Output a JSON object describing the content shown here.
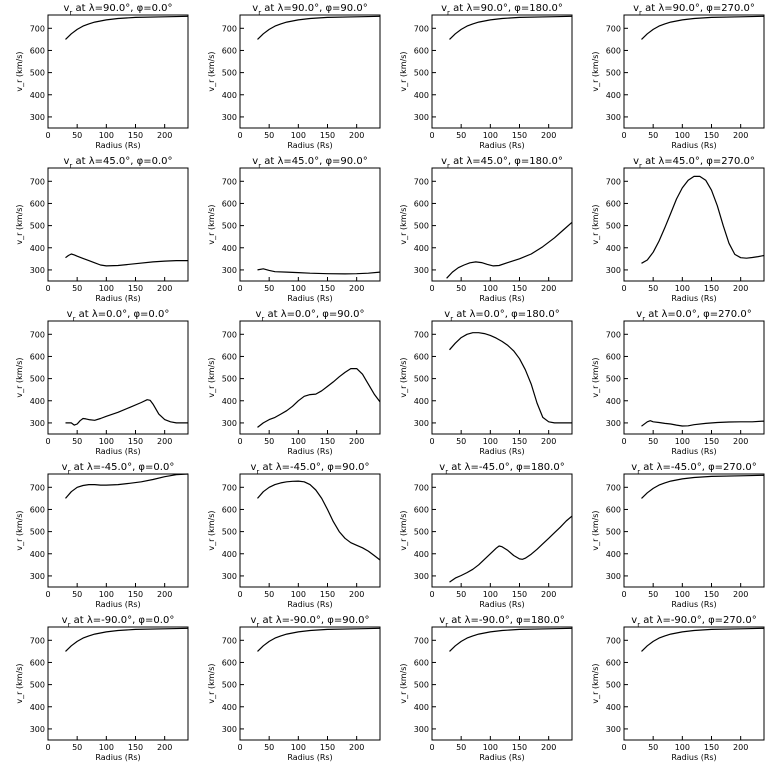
{
  "xlabel": "Radius (Rs)",
  "ylabel": "v_r (km/s)",
  "title_prefix": "v",
  "title_sub": "r",
  "title_at": " at ",
  "lambda_sym": "λ",
  "phi_sym": "φ",
  "deg": "°",
  "xlim": [
    0,
    240
  ],
  "ylim": [
    250,
    760
  ],
  "xticks": [
    0,
    50,
    100,
    150,
    200
  ],
  "yticks": [
    300,
    400,
    500,
    600,
    700
  ],
  "lambdas": [
    "90.0",
    "45.0",
    "0.0",
    "-45.0",
    "-90.0"
  ],
  "phis": [
    "0.0",
    "90.0",
    "180.0",
    "270.0"
  ],
  "chart_data": [
    {
      "type": "line",
      "lambda": "90.0",
      "phi": "0.0",
      "x": [
        30,
        40,
        50,
        60,
        70,
        80,
        100,
        120,
        150,
        200,
        240
      ],
      "y": [
        650,
        675,
        695,
        710,
        720,
        728,
        738,
        744,
        749,
        752,
        754
      ]
    },
    {
      "type": "line",
      "lambda": "90.0",
      "phi": "90.0",
      "x": [
        30,
        40,
        50,
        60,
        70,
        80,
        100,
        120,
        150,
        200,
        240
      ],
      "y": [
        650,
        675,
        695,
        710,
        720,
        728,
        738,
        744,
        749,
        752,
        754
      ]
    },
    {
      "type": "line",
      "lambda": "90.0",
      "phi": "180.0",
      "x": [
        30,
        40,
        50,
        60,
        70,
        80,
        100,
        120,
        150,
        200,
        240
      ],
      "y": [
        650,
        675,
        695,
        710,
        720,
        728,
        738,
        744,
        749,
        752,
        754
      ]
    },
    {
      "type": "line",
      "lambda": "90.0",
      "phi": "270.0",
      "x": [
        30,
        40,
        50,
        60,
        70,
        80,
        100,
        120,
        150,
        200,
        240
      ],
      "y": [
        650,
        675,
        695,
        710,
        720,
        728,
        738,
        744,
        749,
        752,
        754
      ]
    },
    {
      "type": "line",
      "lambda": "45.0",
      "phi": "0.0",
      "x": [
        30,
        35,
        40,
        45,
        50,
        60,
        70,
        80,
        90,
        100,
        120,
        150,
        180,
        200,
        220,
        240
      ],
      "y": [
        355,
        365,
        372,
        368,
        362,
        352,
        342,
        332,
        322,
        318,
        320,
        328,
        336,
        340,
        342,
        342
      ]
    },
    {
      "type": "line",
      "lambda": "45.0",
      "phi": "90.0",
      "x": [
        30,
        40,
        50,
        60,
        80,
        100,
        120,
        150,
        180,
        200,
        220,
        240
      ],
      "y": [
        300,
        305,
        298,
        292,
        290,
        288,
        285,
        283,
        282,
        283,
        285,
        290
      ]
    },
    {
      "type": "line",
      "lambda": "45.0",
      "phi": "180.0",
      "x": [
        25,
        35,
        45,
        55,
        65,
        75,
        85,
        95,
        105,
        115,
        130,
        150,
        170,
        190,
        210,
        225,
        240
      ],
      "y": [
        262,
        290,
        310,
        322,
        332,
        336,
        333,
        325,
        318,
        320,
        333,
        350,
        372,
        405,
        445,
        480,
        515
      ]
    },
    {
      "type": "line",
      "lambda": "45.0",
      "phi": "270.0",
      "x": [
        30,
        40,
        50,
        60,
        70,
        80,
        90,
        100,
        110,
        120,
        130,
        140,
        150,
        160,
        170,
        180,
        190,
        200,
        210,
        220,
        230,
        240
      ],
      "y": [
        330,
        345,
        380,
        430,
        490,
        555,
        620,
        670,
        705,
        722,
        722,
        705,
        660,
        590,
        500,
        420,
        370,
        355,
        353,
        356,
        360,
        365
      ]
    },
    {
      "type": "line",
      "lambda": "0.0",
      "phi": "0.0",
      "x": [
        30,
        40,
        45,
        50,
        55,
        60,
        65,
        70,
        80,
        90,
        100,
        120,
        140,
        160,
        170,
        175,
        180,
        190,
        200,
        210,
        220,
        240
      ],
      "y": [
        300,
        300,
        290,
        295,
        310,
        320,
        318,
        315,
        312,
        320,
        330,
        348,
        370,
        392,
        405,
        402,
        385,
        340,
        315,
        305,
        300,
        300
      ]
    },
    {
      "type": "line",
      "lambda": "0.0",
      "phi": "90.0",
      "x": [
        30,
        40,
        50,
        60,
        70,
        80,
        90,
        100,
        110,
        120,
        130,
        140,
        150,
        160,
        170,
        180,
        190,
        200,
        210,
        220,
        230,
        240
      ],
      "y": [
        280,
        300,
        315,
        325,
        340,
        355,
        375,
        400,
        420,
        428,
        430,
        445,
        465,
        485,
        508,
        528,
        545,
        545,
        520,
        475,
        430,
        395
      ]
    },
    {
      "type": "line",
      "lambda": "0.0",
      "phi": "180.0",
      "x": [
        30,
        40,
        50,
        60,
        70,
        80,
        90,
        100,
        110,
        120,
        130,
        140,
        150,
        160,
        170,
        180,
        190,
        200,
        210,
        220,
        240
      ],
      "y": [
        630,
        660,
        685,
        700,
        707,
        707,
        703,
        695,
        683,
        668,
        650,
        625,
        590,
        540,
        475,
        390,
        325,
        305,
        300,
        300,
        300
      ]
    },
    {
      "type": "line",
      "lambda": "0.0",
      "phi": "270.0",
      "x": [
        30,
        40,
        45,
        50,
        60,
        70,
        80,
        90,
        100,
        110,
        120,
        140,
        160,
        180,
        200,
        220,
        240
      ],
      "y": [
        285,
        305,
        310,
        305,
        302,
        298,
        295,
        290,
        286,
        287,
        292,
        298,
        302,
        304,
        305,
        305,
        308
      ]
    },
    {
      "type": "line",
      "lambda": "-45.0",
      "phi": "0.0",
      "x": [
        30,
        40,
        50,
        60,
        70,
        80,
        90,
        100,
        120,
        140,
        160,
        180,
        200,
        220,
        240
      ],
      "y": [
        650,
        680,
        700,
        708,
        712,
        712,
        710,
        710,
        712,
        718,
        725,
        735,
        748,
        757,
        760
      ]
    },
    {
      "type": "line",
      "lambda": "-45.0",
      "phi": "90.0",
      "x": [
        30,
        40,
        50,
        60,
        70,
        80,
        90,
        100,
        110,
        120,
        130,
        140,
        150,
        160,
        170,
        180,
        190,
        200,
        210,
        220,
        230,
        240
      ],
      "y": [
        650,
        680,
        700,
        712,
        720,
        725,
        727,
        728,
        725,
        712,
        688,
        650,
        600,
        545,
        500,
        470,
        450,
        438,
        427,
        412,
        392,
        372
      ]
    },
    {
      "type": "line",
      "lambda": "-45.0",
      "phi": "180.0",
      "x": [
        30,
        40,
        50,
        60,
        70,
        80,
        90,
        100,
        110,
        115,
        120,
        130,
        140,
        150,
        155,
        160,
        170,
        180,
        190,
        200,
        210,
        220,
        230,
        240
      ],
      "y": [
        272,
        290,
        302,
        315,
        330,
        350,
        375,
        400,
        425,
        435,
        432,
        415,
        392,
        377,
        375,
        380,
        398,
        420,
        445,
        470,
        495,
        520,
        548,
        570
      ]
    },
    {
      "type": "line",
      "lambda": "-45.0",
      "phi": "270.0",
      "x": [
        30,
        40,
        50,
        60,
        70,
        80,
        100,
        120,
        150,
        200,
        240
      ],
      "y": [
        650,
        675,
        695,
        710,
        720,
        728,
        738,
        744,
        749,
        752,
        754
      ]
    },
    {
      "type": "line",
      "lambda": "-90.0",
      "phi": "0.0",
      "x": [
        30,
        40,
        50,
        60,
        70,
        80,
        100,
        120,
        150,
        200,
        240
      ],
      "y": [
        650,
        675,
        695,
        710,
        720,
        728,
        738,
        744,
        749,
        752,
        754
      ]
    },
    {
      "type": "line",
      "lambda": "-90.0",
      "phi": "90.0",
      "x": [
        30,
        40,
        50,
        60,
        70,
        80,
        100,
        120,
        150,
        200,
        240
      ],
      "y": [
        650,
        675,
        695,
        710,
        720,
        728,
        738,
        744,
        749,
        752,
        754
      ]
    },
    {
      "type": "line",
      "lambda": "-90.0",
      "phi": "180.0",
      "x": [
        30,
        40,
        50,
        60,
        70,
        80,
        100,
        120,
        150,
        200,
        240
      ],
      "y": [
        650,
        675,
        695,
        710,
        720,
        728,
        738,
        744,
        749,
        752,
        754
      ]
    },
    {
      "type": "line",
      "lambda": "-90.0",
      "phi": "270.0",
      "x": [
        30,
        40,
        50,
        60,
        70,
        80,
        100,
        120,
        150,
        200,
        240
      ],
      "y": [
        650,
        675,
        695,
        710,
        720,
        728,
        738,
        744,
        749,
        752,
        754
      ]
    }
  ]
}
